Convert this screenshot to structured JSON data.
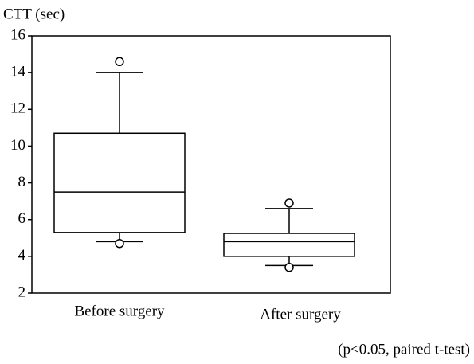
{
  "chart_data": {
    "type": "box",
    "ylabel": "CTT (sec)",
    "annotation": "(p<0.05, paired t-test)",
    "categories": [
      "Before surgery",
      "After surgery"
    ],
    "boxes": [
      {
        "whisker_low": 4.8,
        "q1": 5.3,
        "median": 7.5,
        "q3": 10.7,
        "whisker_high": 14,
        "outliers": [
          14.6,
          4.7
        ]
      },
      {
        "whisker_low": 3.5,
        "q1": 4.0,
        "median": 4.8,
        "q3": 5.25,
        "whisker_high": 6.6,
        "outliers": [
          6.9,
          3.4
        ]
      }
    ],
    "ylim": [
      2,
      16
    ],
    "yticks": [
      2,
      4,
      6,
      8,
      10,
      12,
      14,
      16
    ],
    "grid": false
  }
}
